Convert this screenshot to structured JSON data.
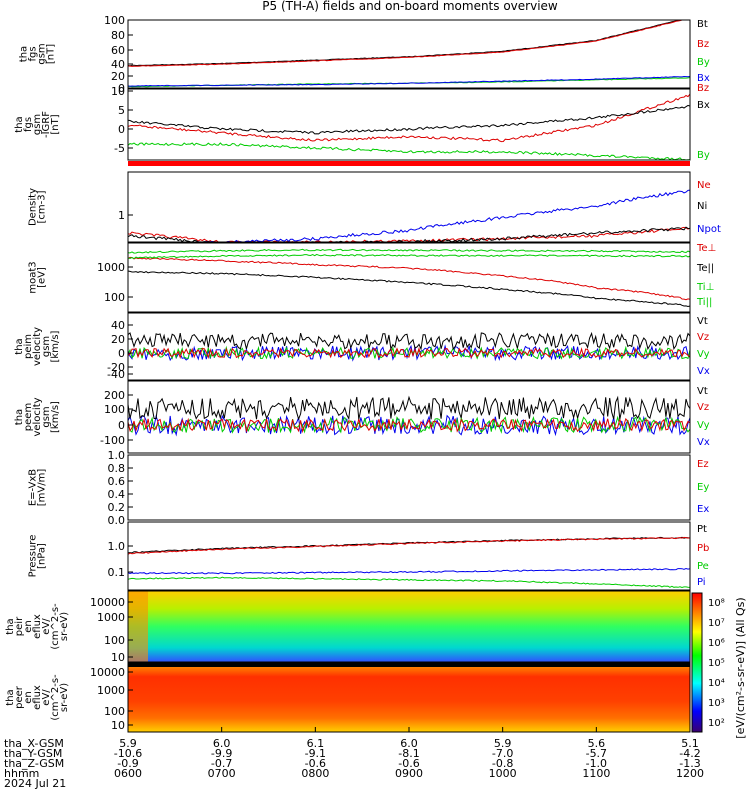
{
  "title": "P5 (TH-A) fields and on-board moments overview",
  "colors": {
    "black": "#000000",
    "red": "#dd0000",
    "green": "#00cc00",
    "blue": "#0000ee"
  },
  "panels": [
    {
      "ylabels": [
        "tha",
        "fgs",
        "gsm",
        "[nT]"
      ],
      "ticks": [
        "100",
        "80",
        "60",
        "40",
        "20",
        "0"
      ],
      "legend": [
        {
          "text": "Bt",
          "color": "#000000"
        },
        {
          "text": "Bz",
          "color": "#dd0000"
        },
        {
          "text": "By",
          "color": "#00cc00"
        },
        {
          "text": "Bx",
          "color": "#0000ee"
        }
      ]
    },
    {
      "ylabels": [
        "tha",
        "fgs",
        "gsm",
        "-IGRF",
        "[nT]"
      ],
      "ticks": [
        "10",
        "5",
        "0",
        "-5"
      ],
      "legend": [
        {
          "text": "Bz",
          "color": "#dd0000"
        },
        {
          "text": "Bx",
          "color": "#000000"
        },
        {
          "text": "By",
          "color": "#00cc00"
        }
      ]
    },
    {
      "ylabels": [
        "Density",
        "[cm-3]"
      ],
      "ticks": [
        "1"
      ],
      "legend": [
        {
          "text": "Ne",
          "color": "#dd0000"
        },
        {
          "text": "Ni",
          "color": "#000000"
        },
        {
          "text": "Npot",
          "color": "#0000ee"
        }
      ]
    },
    {
      "ylabels": [
        "moat3",
        "[eV]"
      ],
      "ticks": [
        "1000",
        "100"
      ],
      "legend": [
        {
          "text": "Te⊥",
          "color": "#dd0000"
        },
        {
          "text": "Te||",
          "color": "#000000"
        },
        {
          "text": "Ti⊥",
          "color": "#00cc00"
        },
        {
          "text": "Ti||",
          "color": "#00cc00"
        }
      ]
    },
    {
      "ylabels": [
        "tha",
        "peim",
        "velocity",
        "gsm",
        "[km/s]"
      ],
      "ticks": [
        "40",
        "20",
        "0",
        "-20",
        "-40"
      ],
      "legend": [
        {
          "text": "Vt",
          "color": "#000000"
        },
        {
          "text": "Vz",
          "color": "#dd0000"
        },
        {
          "text": "Vy",
          "color": "#00cc00"
        },
        {
          "text": "Vx",
          "color": "#0000ee"
        }
      ]
    },
    {
      "ylabels": [
        "tha",
        "peem",
        "velocity",
        "gsm",
        "[km/s]"
      ],
      "ticks": [
        "200",
        "100",
        "0",
        "-100"
      ],
      "legend": [
        {
          "text": "Vt",
          "color": "#000000"
        },
        {
          "text": "Vz",
          "color": "#dd0000"
        },
        {
          "text": "Vy",
          "color": "#00cc00"
        },
        {
          "text": "Vx",
          "color": "#0000ee"
        }
      ]
    },
    {
      "ylabels": [
        "E=-VxB",
        "[mV/m]"
      ],
      "ticks": [
        "1.0",
        "0.8",
        "0.6",
        "0.4",
        "0.2",
        "0.0"
      ],
      "legend": [
        {
          "text": "Ez",
          "color": "#dd0000"
        },
        {
          "text": "Ey",
          "color": "#00cc00"
        },
        {
          "text": "Ex",
          "color": "#0000ee"
        }
      ]
    },
    {
      "ylabels": [
        "Pressure",
        "[nPa]"
      ],
      "ticks": [
        "1.0",
        "0.1"
      ],
      "legend": [
        {
          "text": "Pt",
          "color": "#000000"
        },
        {
          "text": "Pb",
          "color": "#dd0000"
        },
        {
          "text": "Pe",
          "color": "#00cc00"
        },
        {
          "text": "Pi",
          "color": "#0000ee"
        }
      ]
    },
    {
      "ylabels": [
        "tha",
        "peir",
        "en",
        "eflux",
        "eV/",
        "(cm^2-s-",
        "sr-eV)"
      ],
      "ticks": [
        "10000",
        "1000",
        "100",
        "10"
      ],
      "legend": []
    },
    {
      "ylabels": [
        "tha",
        "peer",
        "en",
        "eflux",
        "eV/",
        "(cm^2-s-",
        "sr-eV)"
      ],
      "ticks": [
        "10000",
        "1000",
        "100",
        "10"
      ],
      "legend": []
    }
  ],
  "colorbar": {
    "ticks": [
      "10⁸",
      "10⁷",
      "10⁶",
      "10⁵",
      "10⁴",
      "10³",
      "10²"
    ],
    "label": "[eV/(cm²-s-sr-eV)] (All Qs)"
  },
  "chart_data": {
    "type": "line",
    "title": "P5 (TH-A) fields and on-board moments overview",
    "x": [
      "0600",
      "0700",
      "0800",
      "0900",
      "1000",
      "1100",
      "1200"
    ],
    "xlabel": "hhmm",
    "date": "2024 Jul 21",
    "series": [
      {
        "name": "Bt",
        "panel": 1,
        "values": [
          33,
          36,
          41,
          46,
          54,
          70,
          104
        ]
      },
      {
        "name": "Bz",
        "panel": 1,
        "values": [
          32,
          35,
          40,
          45,
          53,
          69,
          103
        ]
      },
      {
        "name": "By",
        "panel": 1,
        "values": [
          2,
          4,
          6,
          7,
          9,
          12,
          15
        ]
      },
      {
        "name": "Bx",
        "panel": 1,
        "values": [
          3,
          4,
          5,
          7,
          10,
          13,
          17
        ]
      },
      {
        "name": "Bz-IGRF",
        "panel": 2,
        "values": [
          1,
          -1,
          -3,
          -2,
          -3,
          1,
          9
        ]
      },
      {
        "name": "Bx-IGRF",
        "panel": 2,
        "values": [
          2,
          0,
          -1,
          0,
          1,
          3,
          6
        ]
      },
      {
        "name": "By-IGRF",
        "panel": 2,
        "values": [
          -4,
          -4,
          -5,
          -6,
          -6,
          -7,
          -8
        ]
      },
      {
        "name": "Ne",
        "panel": 3,
        "values": [
          0.5,
          0.35,
          0.35,
          0.37,
          0.4,
          0.45,
          0.6
        ]
      },
      {
        "name": "Ni",
        "panel": 3,
        "values": [
          0.45,
          0.33,
          0.34,
          0.36,
          0.4,
          0.5,
          0.6
        ]
      },
      {
        "name": "Npot",
        "panel": 3,
        "values": [
          0.3,
          0.35,
          0.4,
          0.55,
          0.9,
          1.4,
          2.5
        ]
      },
      {
        "name": "Te⊥",
        "panel": 4,
        "values": [
          2000,
          1600,
          1200,
          900,
          500,
          200,
          80
        ]
      },
      {
        "name": "Te||",
        "panel": 4,
        "values": [
          700,
          600,
          450,
          300,
          180,
          90,
          50
        ]
      },
      {
        "name": "Ti⊥",
        "panel": 4,
        "values": [
          3000,
          3500,
          3700,
          3600,
          3500,
          3400,
          3200
        ]
      },
      {
        "name": "Ti||",
        "panel": 4,
        "values": [
          2000,
          2300,
          2500,
          2400,
          2400,
          2350,
          2300
        ]
      }
    ]
  },
  "xaxis": {
    "labels": [
      "tha_X-GSM",
      "tha_Y-GSM",
      "tha_Z-GSM",
      "hhmm",
      "2024 Jul 21"
    ],
    "rows": [
      [
        "5.9",
        "6.0",
        "6.1",
        "6.0",
        "5.9",
        "5.6",
        "5.1"
      ],
      [
        "-10.6",
        "-9.9",
        "-9.1",
        "-8.1",
        "-7.0",
        "-5.7",
        "-4.2"
      ],
      [
        "-0.9",
        "-0.7",
        "-0.6",
        "-0.6",
        "-0.8",
        "-1.0",
        "-1.3"
      ],
      [
        "0600",
        "0700",
        "0800",
        "0900",
        "1000",
        "1100",
        "1200"
      ]
    ]
  }
}
